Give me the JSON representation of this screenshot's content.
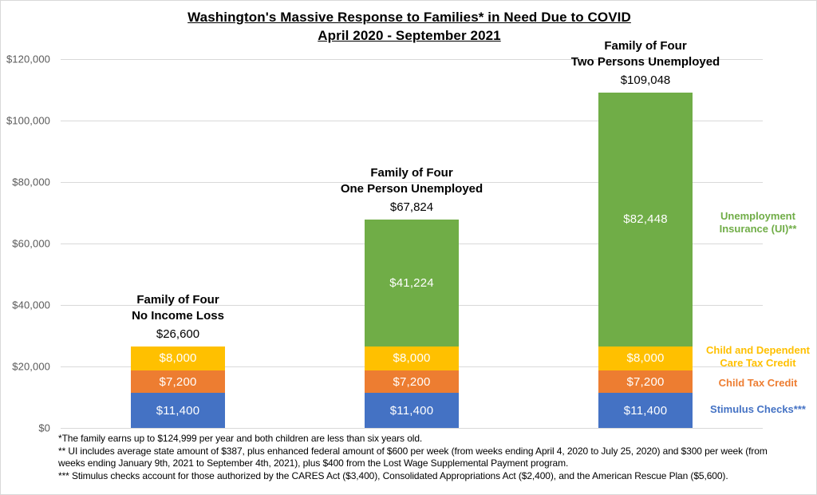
{
  "title": "Washington's Massive Response to Families* in Need Due to COVID",
  "subtitle": "April 2020 - September 2021",
  "chart_data": {
    "type": "bar",
    "stacked": true,
    "title": "Washington's Massive Response to Families* in Need Due to COVID",
    "subtitle": "April 2020 - September 2021",
    "categories": [
      [
        "Family of Four",
        "No Income Loss"
      ],
      [
        "Family of Four",
        "One Person Unemployed"
      ],
      [
        "Family of Four",
        "Two Persons Unemployed"
      ]
    ],
    "totals": [
      26600,
      67824,
      109048
    ],
    "totals_labels": [
      "$26,600",
      "$67,824",
      "$109,048"
    ],
    "series": [
      {
        "name": "Stimulus Checks***",
        "color": "#4472C4",
        "values": [
          11400,
          11400,
          11400
        ],
        "labels": [
          "$11,400",
          "$11,400",
          "$11,400"
        ]
      },
      {
        "name": "Child Tax Credit",
        "color": "#ED7D31",
        "values": [
          7200,
          7200,
          7200
        ],
        "labels": [
          "$7,200",
          "$7,200",
          "$7,200"
        ]
      },
      {
        "name": "Child and Dependent Care Tax Credit",
        "color": "#FFC000",
        "values": [
          8000,
          8000,
          8000
        ],
        "labels": [
          "$8,000",
          "$8,000",
          "$8,000"
        ]
      },
      {
        "name": "Unemployment Insurance (UI)**",
        "color": "#70AD47",
        "values": [
          0,
          41224,
          82448
        ],
        "labels": [
          "",
          "$41,224",
          "$82,448"
        ]
      }
    ],
    "xlabel": "",
    "ylabel": "",
    "ylim": [
      0,
      120000
    ],
    "ytick_step": 20000,
    "yticks": [
      {
        "value": 0,
        "label": "$0"
      },
      {
        "value": 20000,
        "label": "$20,000"
      },
      {
        "value": 40000,
        "label": "$40,000"
      },
      {
        "value": 60000,
        "label": "$60,000"
      },
      {
        "value": 80000,
        "label": "$80,000"
      },
      {
        "value": 100000,
        "label": "$100,000"
      },
      {
        "value": 120000,
        "label": "$120,000"
      }
    ],
    "grid": true,
    "legend_position": "right",
    "legend": [
      {
        "lines": [
          "Unemployment",
          "Insurance (UI)**"
        ],
        "color": "#70AD47"
      },
      {
        "lines": [
          "Child  and  Dependent",
          "Care Tax Credit"
        ],
        "color": "#FFC000"
      },
      {
        "lines": [
          "Child Tax Credit"
        ],
        "color": "#ED7D31"
      },
      {
        "lines": [
          "Stimulus Checks***"
        ],
        "color": "#4472C4"
      }
    ]
  },
  "footnotes": [
    "*The family earns up to $124,999 per year and both children are less than six years old.",
    "** UI includes average state amount of $387, plus enhanced federal amount of $600 per week (from weeks ending April 4, 2020 to July 25, 2020) and $300 per week (from weeks ending January 9th, 2021 to September 4th, 2021), plus $400 from the Lost Wage Supplemental Payment program.",
    "*** Stimulus checks account for those authorized by the CARES Act ($3,400), Consolidated Appropriations Act ($2,400), and the American Rescue Plan ($5,600)."
  ]
}
